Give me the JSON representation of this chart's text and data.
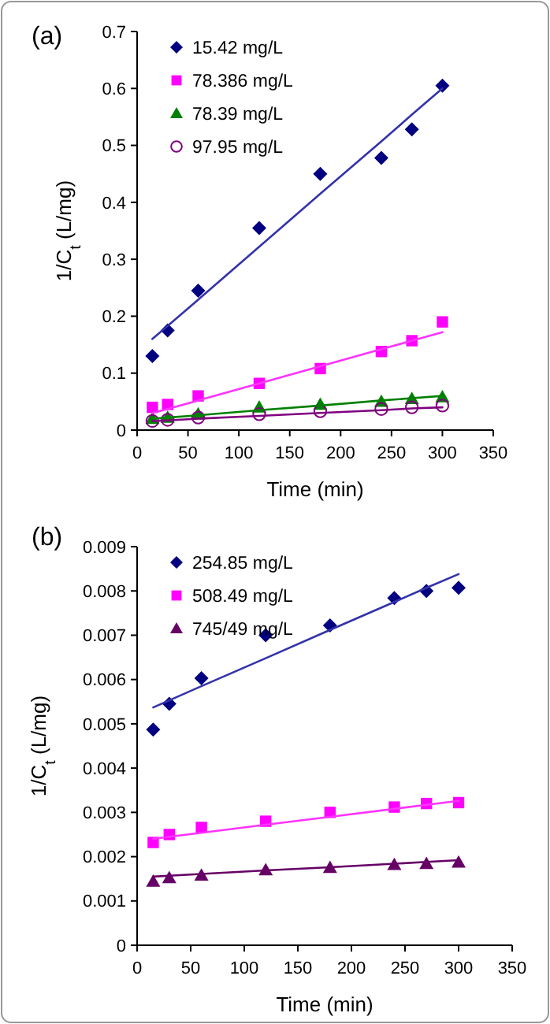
{
  "chart_data": [
    {
      "type": "scatter",
      "title": "(a)",
      "xlabel": "Time (min)",
      "ylabel": "1/C$_{t}$  (L/mg)",
      "legend": "top left",
      "xlim": [
        0,
        350
      ],
      "xticks": [
        0,
        50,
        100,
        150,
        200,
        250,
        300,
        350
      ],
      "ylim": [
        0,
        0.7
      ],
      "yticks": [
        0,
        0.1,
        0.2,
        0.3,
        0.4,
        0.5,
        0.6,
        0.7
      ],
      "grid": false,
      "x": [
        15,
        30,
        60,
        120,
        180,
        240,
        270,
        300
      ],
      "series": [
        {
          "name": "15.42 mg/L",
          "color": "#000080",
          "marker": "diamond",
          "values": [
            0.13,
            0.175,
            0.245,
            0.355,
            0.45,
            0.478,
            0.528,
            0.605
          ]
        },
        {
          "name": "78.386 mg/L",
          "color": "#ff00ff",
          "marker": "square",
          "values": [
            0.04,
            0.045,
            0.06,
            0.082,
            0.108,
            0.138,
            0.157,
            0.19
          ]
        },
        {
          "name": "78.39 mg/L",
          "color": "#008000",
          "marker": "triangle",
          "values": [
            0.02,
            0.022,
            0.028,
            0.04,
            0.045,
            0.05,
            0.055,
            0.058
          ]
        },
        {
          "name": "97.95 mg/L",
          "color": "#800080",
          "marker": "circle",
          "values": [
            0.016,
            0.018,
            0.022,
            0.028,
            0.033,
            0.037,
            0.04,
            0.043
          ]
        },
        {
          "type": "line",
          "color": "#3333aa",
          "marker": "none",
          "values": [
            0.16,
            0.183,
            0.229,
            0.322,
            0.415,
            0.507,
            0.554,
            0.6
          ]
        },
        {
          "type": "line",
          "color": "#ff33ff",
          "marker": "none",
          "values": [
            0.03,
            0.037,
            0.052,
            0.082,
            0.112,
            0.142,
            0.157,
            0.172
          ]
        },
        {
          "type": "line",
          "color": "#008000",
          "marker": "none",
          "values": [
            0.02,
            0.022,
            0.026,
            0.035,
            0.043,
            0.052,
            0.056,
            0.06
          ]
        },
        {
          "type": "line",
          "color": "#800080",
          "marker": "none",
          "values": [
            0.016,
            0.017,
            0.02,
            0.025,
            0.03,
            0.035,
            0.038,
            0.04
          ]
        }
      ]
    },
    {
      "type": "scatter",
      "title": "(b)",
      "xlabel": "Time (min)",
      "ylabel": "1/C$_{t}$  (L/mg)",
      "legend": "top left",
      "xlim": [
        0,
        350
      ],
      "xticks": [
        0,
        50,
        100,
        150,
        200,
        250,
        300,
        350
      ],
      "ylim": [
        0,
        0.009
      ],
      "yticks": [
        0,
        0.001,
        0.002,
        0.003,
        0.004,
        0.005,
        0.006,
        0.007,
        0.008,
        0.009
      ],
      "grid": false,
      "x": [
        15,
        30,
        60,
        120,
        180,
        240,
        270,
        300
      ],
      "series": [
        {
          "name": "254.85 mg/L",
          "color": "#000080",
          "marker": "diamond",
          "values": [
            0.00487,
            0.00545,
            0.00603,
            0.007,
            0.00722,
            0.00784,
            0.008,
            0.00807
          ]
        },
        {
          "name": "508.49 mg/L",
          "color": "#ff00ff",
          "marker": "square",
          "values": [
            0.00232,
            0.0025,
            0.00266,
            0.0028,
            0.003,
            0.00312,
            0.0032,
            0.00322
          ]
        },
        {
          "name": "745/49 mg/L",
          "color": "#660066",
          "marker": "triangle",
          "values": [
            0.00144,
            0.00152,
            0.00158,
            0.0017,
            0.00175,
            0.00182,
            0.00184,
            0.00187
          ]
        },
        {
          "type": "line",
          "color": "#3333aa",
          "marker": "none",
          "values": [
            0.00537,
            0.00553,
            0.00585,
            0.00648,
            0.00712,
            0.00775,
            0.00807,
            0.00838
          ]
        },
        {
          "type": "line",
          "color": "#ff33ff",
          "marker": "none",
          "values": [
            0.0024,
            0.00245,
            0.00254,
            0.00272,
            0.0029,
            0.00308,
            0.00317,
            0.00326
          ]
        },
        {
          "type": "line",
          "color": "#660066",
          "marker": "none",
          "values": [
            0.00155,
            0.00157,
            0.00161,
            0.00169,
            0.00176,
            0.00184,
            0.00188,
            0.00192
          ]
        }
      ]
    }
  ]
}
